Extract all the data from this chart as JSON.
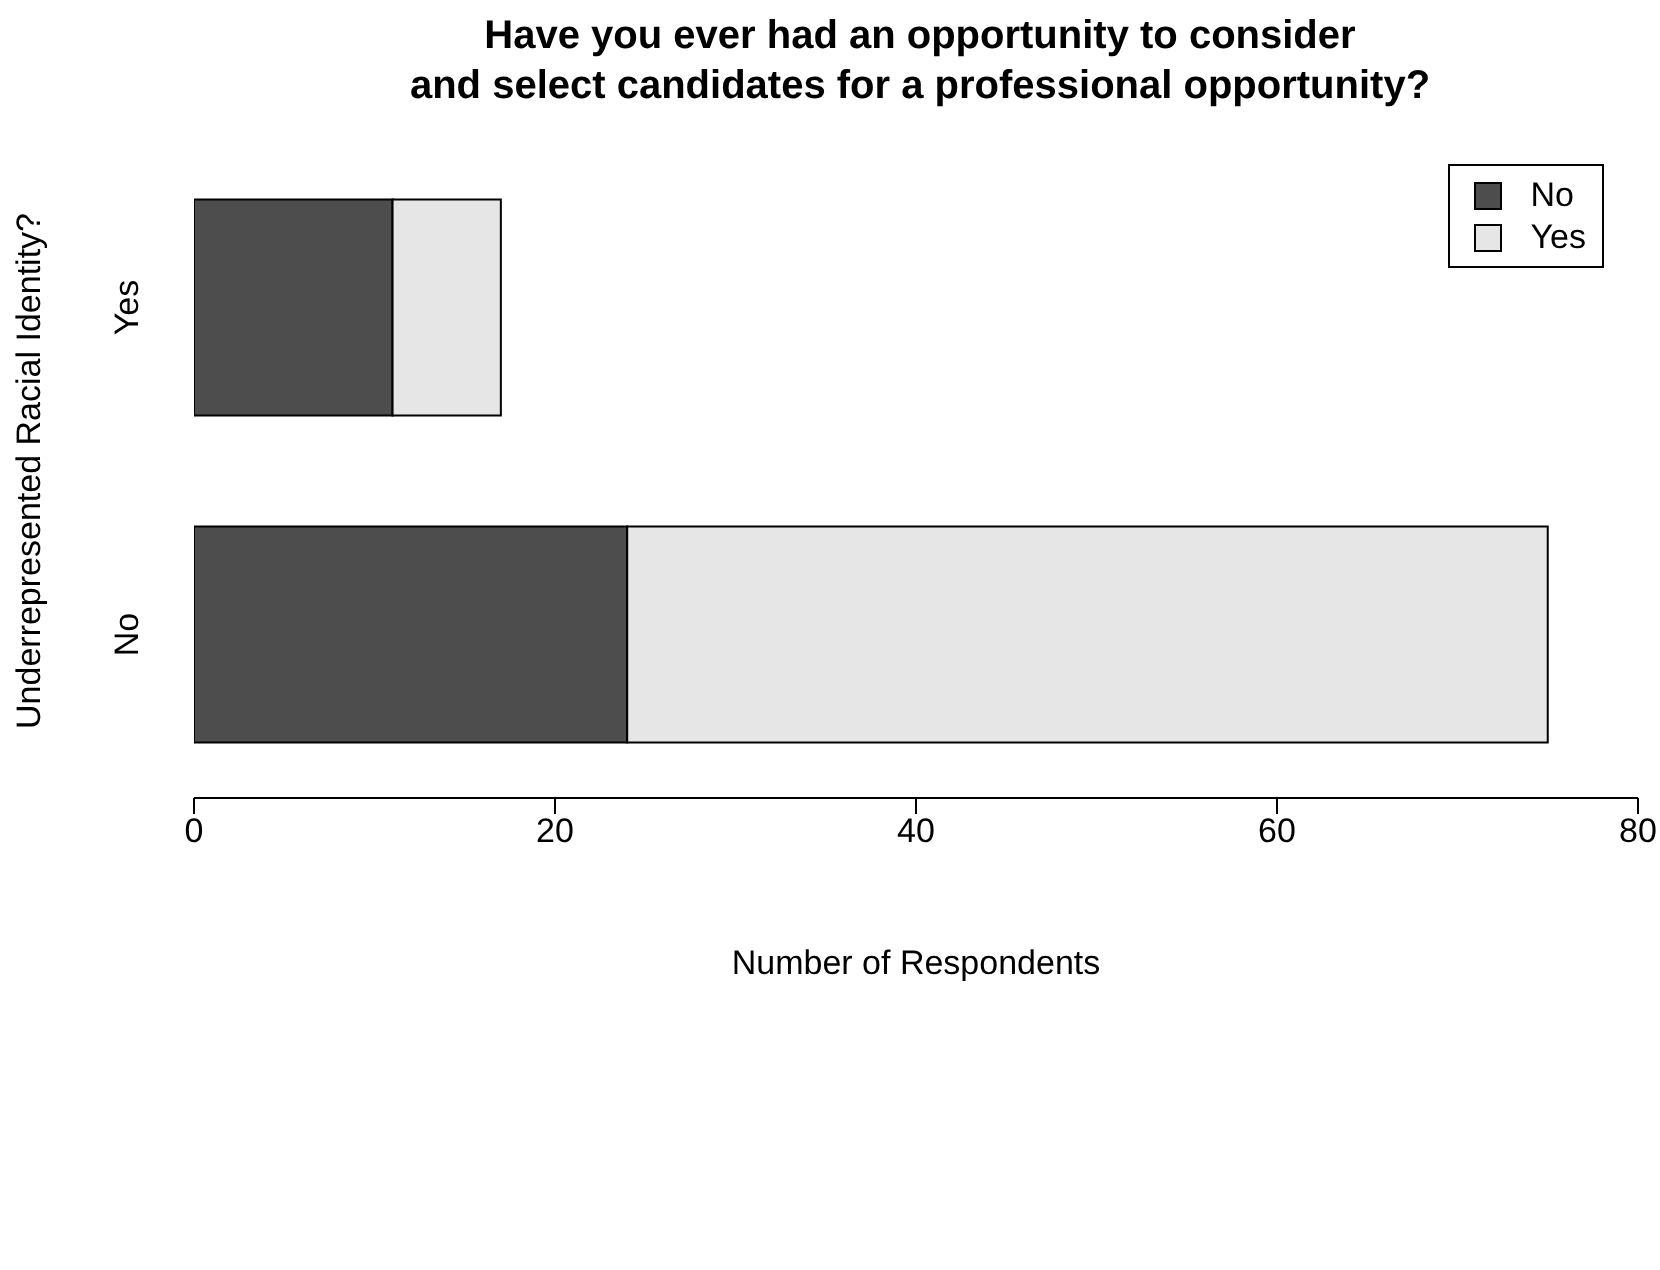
{
  "chart_data": {
    "type": "bar",
    "title": "Have you ever had an opportunity to consider\nand select candidates for a professional opportunity?",
    "xlabel": "Number of Respondents",
    "ylabel": "Underrepresented Racial Identity?",
    "categories": [
      "Yes",
      "No"
    ],
    "orientation": "horizontal",
    "stacked": true,
    "series": [
      {
        "name": "No",
        "color": "#4d4d4d",
        "values": [
          11,
          24
        ]
      },
      {
        "name": "Yes",
        "color": "#e6e6e6",
        "values": [
          6,
          51
        ]
      }
    ],
    "xlim": [
      0,
      80
    ],
    "xticks": [
      0,
      20,
      40,
      60,
      80
    ],
    "grid": false,
    "legend": "top right"
  }
}
